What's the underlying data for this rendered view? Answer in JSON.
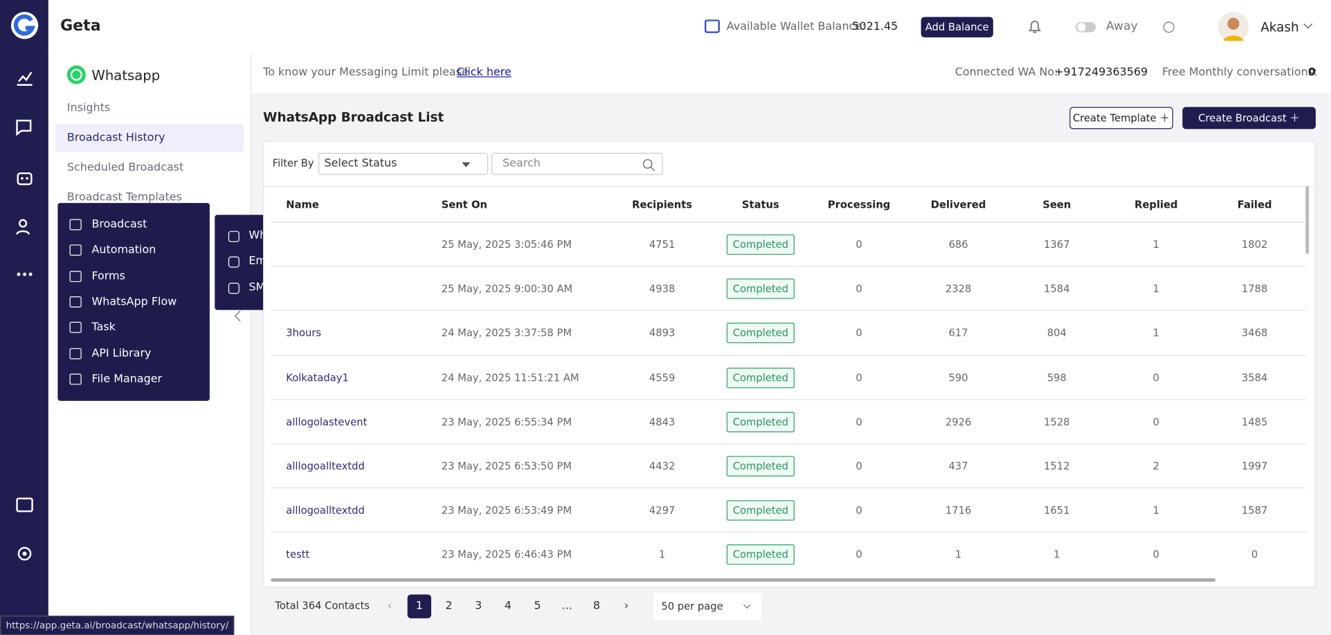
{
  "brand": "Geta",
  "header": {
    "wallet_label": "Available Wallet Balance:",
    "wallet_balance": "5021.45",
    "add_balance": "Add Balance",
    "presence": "Away",
    "user": "Akash"
  },
  "side_menu": {
    "title": "Whatsapp",
    "items": [
      "Insights",
      "Broadcast History",
      "Scheduled Broadcast",
      "Broadcast Templates"
    ]
  },
  "more_menu": [
    "Broadcast",
    "Automation",
    "Forms",
    "WhatsApp Flow",
    "Task",
    "API Library",
    "File Manager"
  ],
  "sub_menu": [
    "WhatsApp Broadcast",
    "Email Broadcast",
    "SMS Broadcast"
  ],
  "notice": {
    "text": "To know your Messaging Limit please",
    "link": "Click here",
    "connected_label": "Connected WA No:",
    "connected_number": "+917249363569",
    "free_label": "Free Monthly conversations:",
    "free_value": "0"
  },
  "page_title": "WhatsApp Broadcast List",
  "buttons": {
    "create_template": "Create Template",
    "create_broadcast": "Create Broadcast"
  },
  "filter": {
    "label": "Filter By",
    "status_select": "Select Status",
    "search_placeholder": "Search"
  },
  "table": {
    "columns": [
      "Name",
      "Sent On",
      "Recipients",
      "Status",
      "Processing",
      "Delivered",
      "Seen",
      "Replied",
      "Failed"
    ],
    "rows": [
      [
        null,
        "25 May, 2025 3:05:46 PM",
        "4751",
        "Completed",
        "0",
        "686",
        "1367",
        "1",
        "1802"
      ],
      [
        null,
        "25 May, 2025 9:00:30 AM",
        "4938",
        "Completed",
        "0",
        "2328",
        "1584",
        "1",
        "1788"
      ],
      [
        "3hours",
        "24 May, 2025 3:37:58 PM",
        "4893",
        "Completed",
        "0",
        "617",
        "804",
        "1",
        "3468"
      ],
      [
        "Kolkataday1",
        "24 May, 2025 11:51:21 AM",
        "4559",
        "Completed",
        "0",
        "590",
        "598",
        "0",
        "3584"
      ],
      [
        "alllogolastevent",
        "23 May, 2025 6:55:34 PM",
        "4843",
        "Completed",
        "0",
        "2926",
        "1528",
        "0",
        "1485"
      ],
      [
        "alllogoalltextdd",
        "23 May, 2025 6:53:50 PM",
        "4432",
        "Completed",
        "0",
        "437",
        "1512",
        "2",
        "1997"
      ],
      [
        "alllogoalltextdd",
        "23 May, 2025 6:53:49 PM",
        "4297",
        "Completed",
        "0",
        "1716",
        "1651",
        "1",
        "1587"
      ],
      [
        "testt",
        "23 May, 2025 6:46:43 PM",
        "1",
        "Completed",
        "0",
        "1",
        "1",
        "0",
        "0"
      ]
    ]
  },
  "pagination": {
    "total": "Total 364 Contacts",
    "pages": [
      "1",
      "2",
      "3",
      "4",
      "5",
      "...",
      "8"
    ],
    "per_page": "50 per page"
  },
  "status_url": "https://app.geta.ai/broadcast/whatsapp/history/"
}
